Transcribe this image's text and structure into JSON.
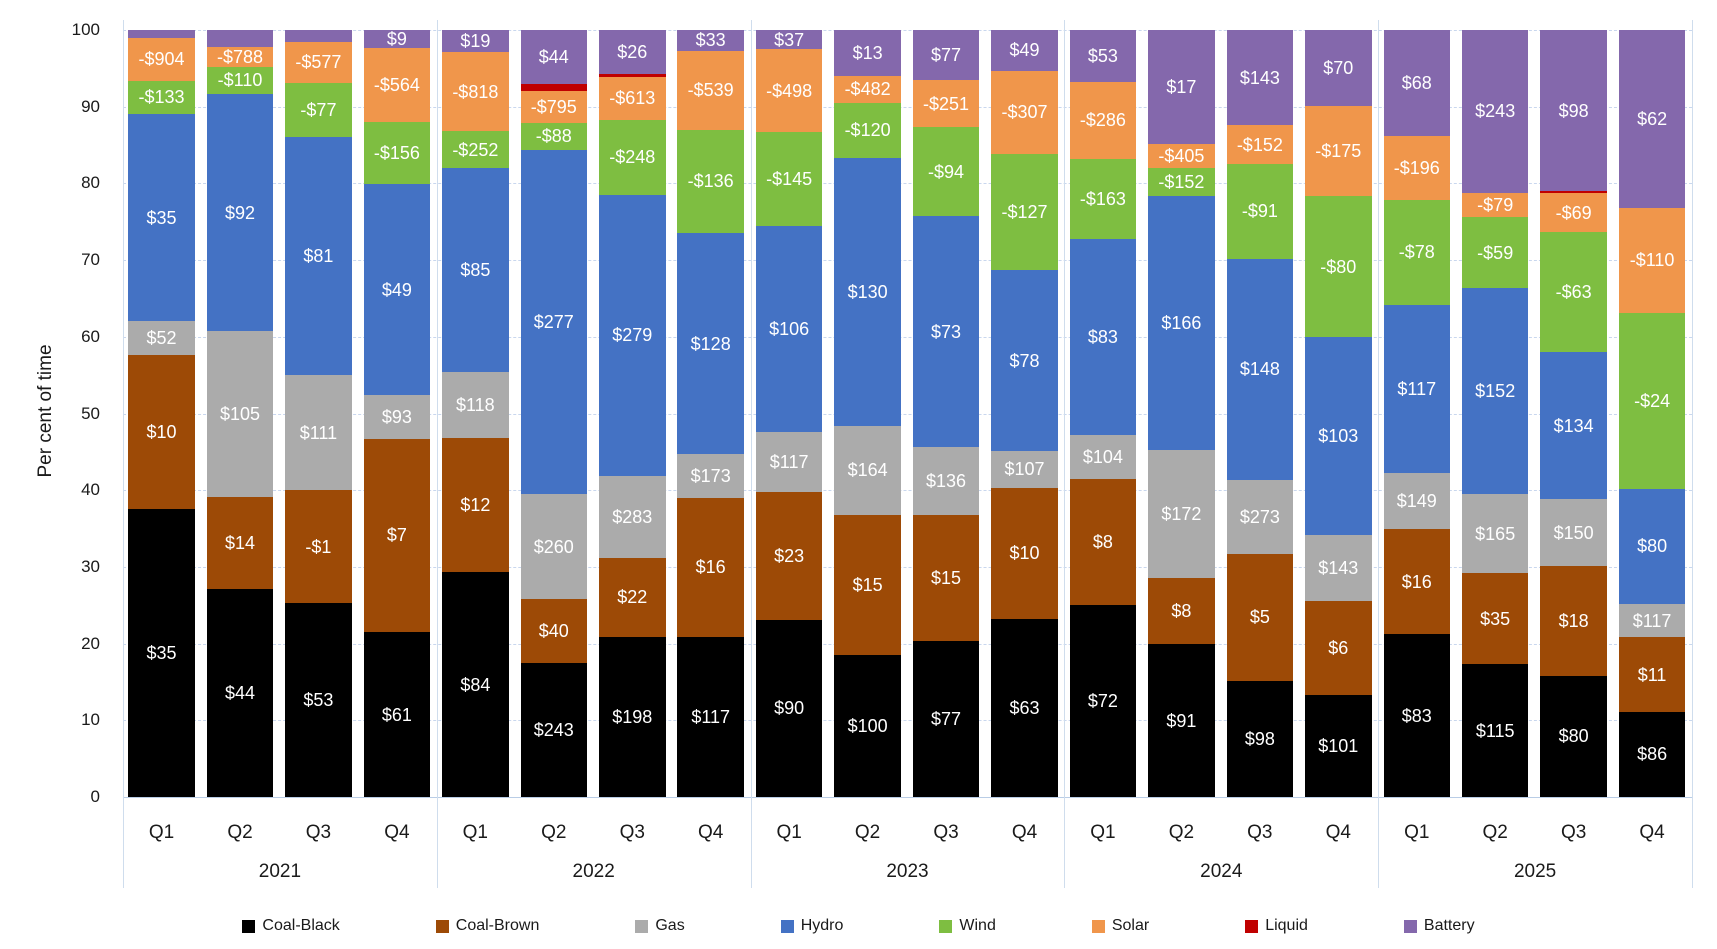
{
  "chart_data": {
    "type": "bar",
    "variant": "100-percent-stacked-column",
    "title": "",
    "xlabel": "",
    "ylabel": "Per cent of time",
    "ylim": [
      0,
      100
    ],
    "yticks": [
      0,
      10,
      20,
      30,
      40,
      50,
      60,
      70,
      80,
      90,
      100
    ],
    "grid": "horizontal-dashed",
    "legend_position": "bottom",
    "series_names": [
      "Coal-Black",
      "Coal-Brown",
      "Gas",
      "Hydro",
      "Wind",
      "Solar",
      "Liquid",
      "Battery"
    ],
    "series_colors": [
      "#000000",
      "#9d4a06",
      "#ababab",
      "#4472c4",
      "#7ebe41",
      "#f0964b",
      "#c00000",
      "#8468ac"
    ],
    "note": "pct = share of time (bar segment height, %); labels = average $ price shown on each segment, bottom-to-top order matches series_names",
    "groups": [
      {
        "year": "2021",
        "quarters": [
          {
            "q": "Q1",
            "pct": [
              37.5,
              20.1,
              4.4,
              27.0,
              4.4,
              5.6,
              0,
              1.0
            ],
            "labels": [
              "$35",
              "$10",
              "$52",
              "$35",
              "-$133",
              "-$904",
              null,
              null
            ]
          },
          {
            "q": "Q2",
            "pct": [
              27.1,
              12.0,
              21.6,
              31.0,
              3.5,
              2.6,
              0,
              2.2
            ],
            "labels": [
              "$44",
              "$14",
              "$105",
              "$92",
              "-$110",
              "-$788",
              null,
              null
            ]
          },
          {
            "q": "Q3",
            "pct": [
              25.3,
              14.7,
              15.0,
              31.0,
              7.1,
              5.4,
              0,
              1.5
            ],
            "labels": [
              "$53",
              "-$1",
              "$111",
              "$81",
              "-$77",
              "-$577",
              null,
              null
            ]
          },
          {
            "q": "Q4",
            "pct": [
              21.5,
              25.2,
              5.7,
              27.5,
              8.1,
              9.7,
              0,
              2.3
            ],
            "labels": [
              "$61",
              "$7",
              "$93",
              "$49",
              "-$156",
              "-$564",
              null,
              "$9"
            ]
          }
        ]
      },
      {
        "year": "2022",
        "quarters": [
          {
            "q": "Q1",
            "pct": [
              29.3,
              17.5,
              8.6,
              26.6,
              4.8,
              10.3,
              0,
              2.9
            ],
            "labels": [
              "$84",
              "$12",
              "$118",
              "$85",
              "-$252",
              "-$818",
              null,
              "$19"
            ]
          },
          {
            "q": "Q2",
            "pct": [
              17.5,
              8.3,
              13.7,
              44.9,
              3.5,
              4.2,
              0.9,
              7.0
            ],
            "labels": [
              "$243",
              "$40",
              "$260",
              "$277",
              "-$88",
              "-$795",
              null,
              "$44"
            ]
          },
          {
            "q": "Q3",
            "pct": [
              20.9,
              10.3,
              10.7,
              36.6,
              9.8,
              5.6,
              0.3,
              5.8
            ],
            "labels": [
              "$198",
              "$22",
              "$283",
              "$279",
              "-$248",
              "-$613",
              null,
              "$26"
            ]
          },
          {
            "q": "Q4",
            "pct": [
              20.9,
              18.1,
              5.7,
              28.8,
              13.5,
              10.3,
              0,
              2.7
            ],
            "labels": [
              "$117",
              "$16",
              "$173",
              "$128",
              "-$136",
              "-$539",
              null,
              "$33"
            ]
          }
        ]
      },
      {
        "year": "2023",
        "quarters": [
          {
            "q": "Q1",
            "pct": [
              23.1,
              16.6,
              7.9,
              26.8,
              12.3,
              10.8,
              0,
              2.5
            ],
            "labels": [
              "$90",
              "$23",
              "$117",
              "$106",
              "-$145",
              "-$498",
              null,
              "$37"
            ]
          },
          {
            "q": "Q2",
            "pct": [
              18.5,
              18.3,
              11.6,
              34.9,
              7.2,
              3.5,
              0,
              6.0
            ],
            "labels": [
              "$100",
              "$15",
              "$164",
              "$130",
              "-$120",
              "-$482",
              null,
              "$13"
            ]
          },
          {
            "q": "Q3",
            "pct": [
              20.3,
              16.4,
              8.9,
              30.1,
              11.6,
              6.2,
              0,
              6.5
            ],
            "labels": [
              "$77",
              "$15",
              "$136",
              "$73",
              "-$94",
              "-$251",
              null,
              "$77"
            ]
          },
          {
            "q": "Q4",
            "pct": [
              23.2,
              17.1,
              4.8,
              23.6,
              15.1,
              10.9,
              0,
              5.3
            ],
            "labels": [
              "$63",
              "$10",
              "$107",
              "$78",
              "-$127",
              "-$307",
              null,
              "$49"
            ]
          }
        ]
      },
      {
        "year": "2024",
        "quarters": [
          {
            "q": "Q1",
            "pct": [
              25.0,
              16.4,
              5.8,
              25.5,
              10.5,
              10.0,
              0,
              6.8
            ],
            "labels": [
              "$72",
              "$8",
              "$104",
              "$83",
              "-$163",
              "-$286",
              null,
              "$53"
            ]
          },
          {
            "q": "Q2",
            "pct": [
              19.9,
              8.6,
              16.8,
              33.0,
              3.7,
              3.1,
              0,
              14.9
            ],
            "labels": [
              "$91",
              "$8",
              "$172",
              "$166",
              "-$152",
              "-$405",
              null,
              "$17"
            ]
          },
          {
            "q": "Q3",
            "pct": [
              15.1,
              16.6,
              9.6,
              28.9,
              12.3,
              5.1,
              0,
              12.4
            ],
            "labels": [
              "$98",
              "$5",
              "$273",
              "$148",
              "-$91",
              "-$152",
              null,
              "$143"
            ]
          },
          {
            "q": "Q4",
            "pct": [
              13.3,
              12.2,
              8.6,
              25.9,
              18.3,
              11.8,
              0,
              9.9
            ],
            "labels": [
              "$101",
              "$6",
              "$143",
              "$103",
              "-$80",
              "-$175",
              null,
              "$70"
            ]
          }
        ]
      },
      {
        "year": "2025",
        "quarters": [
          {
            "q": "Q1",
            "pct": [
              21.2,
              13.7,
              7.3,
              22.0,
              13.7,
              8.3,
              0,
              13.8
            ],
            "labels": [
              "$83",
              "$16",
              "$149",
              "$117",
              "-$78",
              "-$196",
              null,
              "$68"
            ]
          },
          {
            "q": "Q2",
            "pct": [
              17.3,
              11.9,
              10.3,
              26.8,
              9.3,
              3.2,
              0,
              21.2
            ],
            "labels": [
              "$115",
              "$35",
              "$165",
              "$152",
              "-$59",
              "-$79",
              null,
              "$243"
            ]
          },
          {
            "q": "Q3",
            "pct": [
              15.8,
              14.3,
              8.7,
              19.2,
              15.6,
              5.1,
              0.3,
              21.0
            ],
            "labels": [
              "$80",
              "$18",
              "$150",
              "$134",
              "-$63",
              "-$69",
              null,
              "$98"
            ]
          },
          {
            "q": "Q4",
            "pct": [
              11.1,
              9.7,
              4.4,
              15.0,
              22.9,
              13.7,
              0,
              23.2
            ],
            "labels": [
              "$86",
              "$11",
              "$117",
              "$80",
              "-$24",
              "-$110",
              null,
              "$62"
            ]
          }
        ]
      }
    ],
    "legend_entries": [
      "Coal-Black",
      "Coal-Brown",
      "Gas",
      "Hydro",
      "Wind",
      "Solar",
      "Liquid",
      "Battery"
    ]
  }
}
